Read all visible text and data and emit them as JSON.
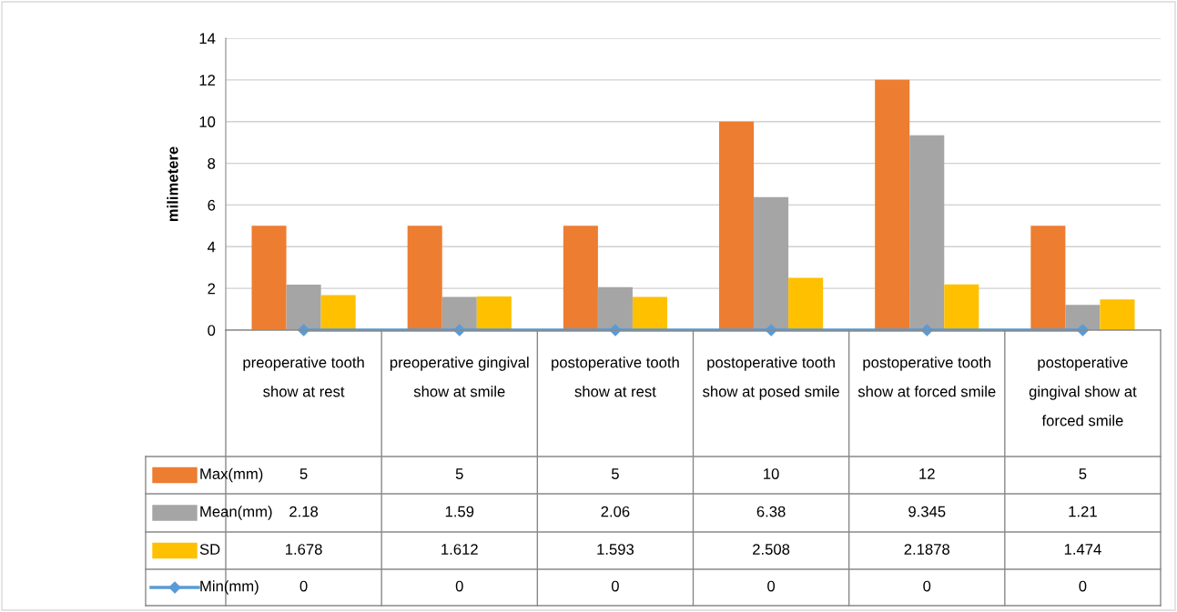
{
  "chart_data": {
    "type": "bar",
    "ylabel": "milimetere",
    "categories": [
      "preoperative tooth show at rest",
      "preoperative gingival show at smile",
      "postoperative tooth show at rest",
      "postoperative tooth show at posed smile",
      "postoperative tooth show at forced smile",
      "postoperative gingival show at forced smile"
    ],
    "series": [
      {
        "name": "Max(mm)",
        "color": "#ed7d31",
        "values": [
          5,
          5,
          5,
          10,
          12,
          5
        ]
      },
      {
        "name": "Mean(mm)",
        "color": "#a5a5a5",
        "values": [
          2.18,
          1.59,
          2.06,
          6.38,
          9.345,
          1.21
        ]
      },
      {
        "name": "SD",
        "color": "#ffc000",
        "values": [
          1.678,
          1.612,
          1.593,
          2.508,
          2.1878,
          1.474
        ]
      },
      {
        "name": "Min(mm)",
        "color": "#5b9bd5",
        "type": "line",
        "marker": "diamond",
        "values": [
          0,
          0,
          0,
          0,
          0,
          0
        ]
      }
    ],
    "ylim": [
      0,
      14
    ],
    "yticks": [
      0,
      2,
      4,
      6,
      8,
      10,
      12,
      14
    ],
    "grid": "y",
    "legend": "bottom",
    "data_labels": true
  }
}
